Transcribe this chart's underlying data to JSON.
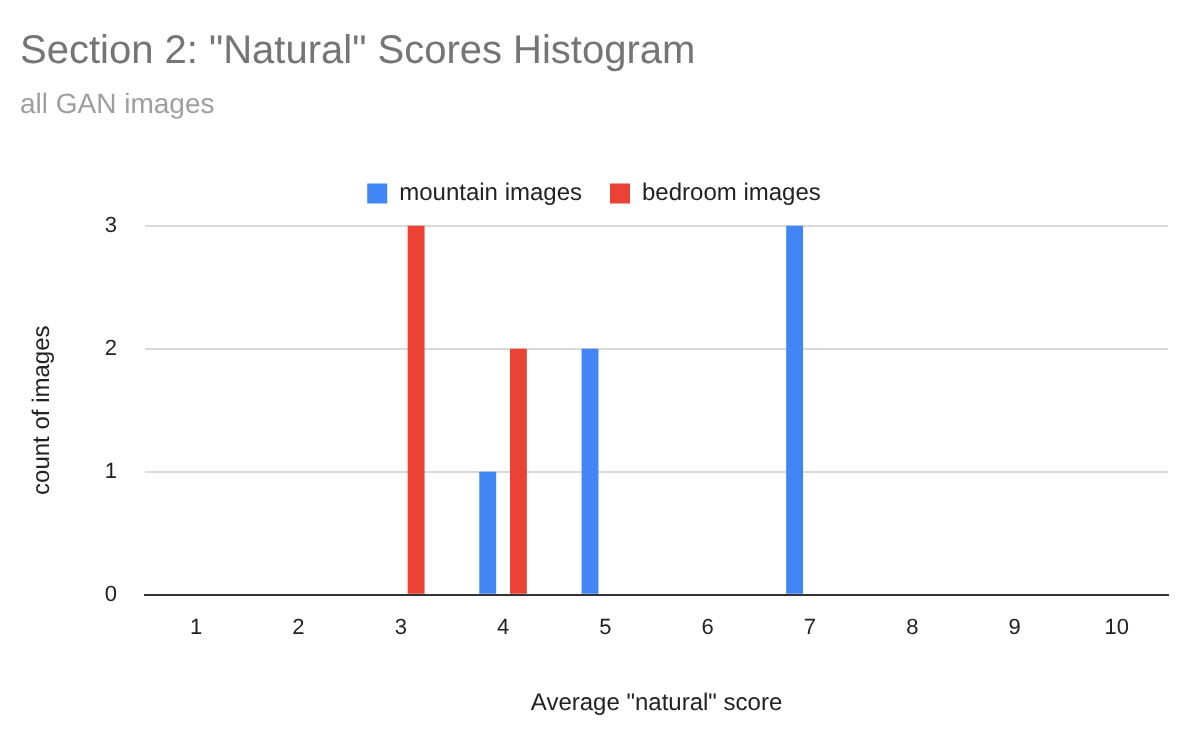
{
  "chart_data": {
    "type": "bar",
    "title": "Section 2: \"Natural\" Scores Histogram",
    "subtitle": "all GAN images",
    "xlabel": "Average \"natural\" score",
    "ylabel": "count of images",
    "categories": [
      "1",
      "2",
      "3",
      "4",
      "5",
      "6",
      "7",
      "8",
      "9",
      "10"
    ],
    "series": [
      {
        "name": "mountain images",
        "color": "#4285f4",
        "values": [
          0,
          0,
          0,
          1,
          2,
          0,
          3,
          0,
          0,
          0
        ]
      },
      {
        "name": "bedroom images",
        "color": "#ea4335",
        "values": [
          0,
          0,
          3,
          2,
          0,
          0,
          0,
          0,
          0,
          0
        ]
      }
    ],
    "ylim": [
      0,
      3
    ],
    "yticks": [
      0,
      1,
      2,
      3
    ],
    "grid": "y",
    "legend": "top"
  }
}
